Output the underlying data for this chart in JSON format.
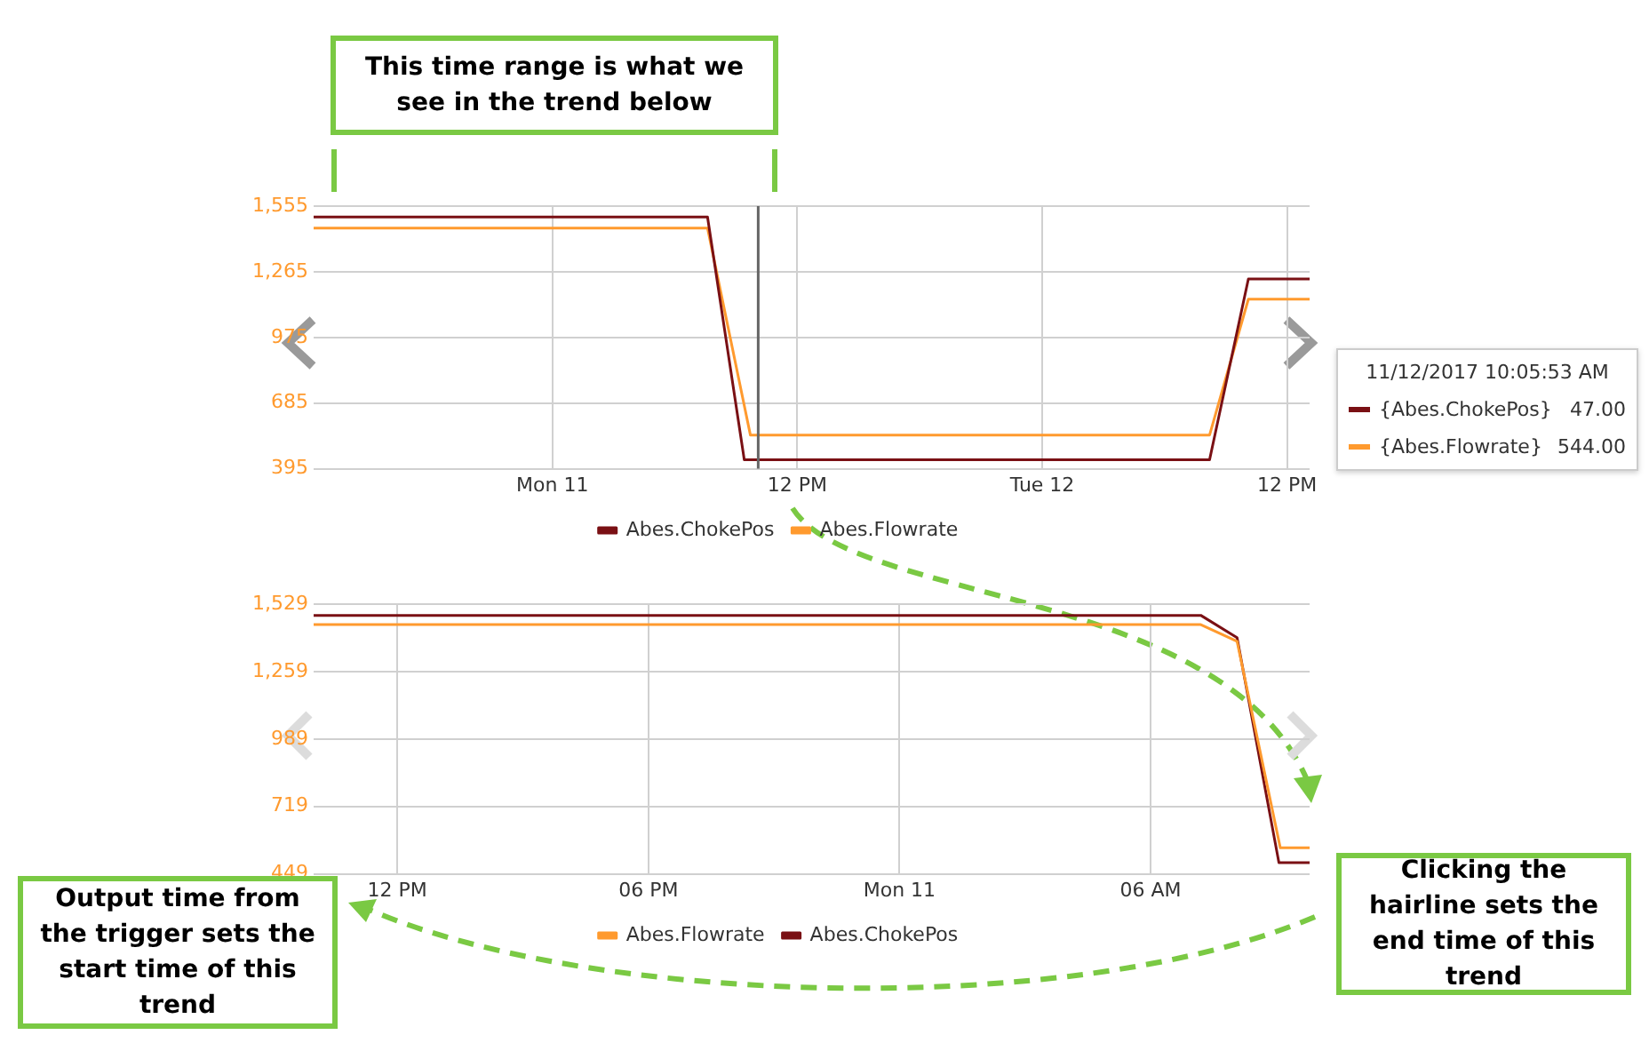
{
  "chart_data": [
    {
      "type": "line",
      "annotations": [
        "This time range is what we see in the trend below",
        "11/12/2017 10:05:53 AM",
        "{Abes.ChokePos}",
        "47.00",
        "{Abes.Flowrate}",
        "544.00"
      ],
      "series": [
        {
          "name": "Abes.ChokePos",
          "color": "#7a1014",
          "x": [
            "2017-12-10T12:18",
            "2017-12-11T07:36",
            "2017-12-11T09:24",
            "2017-12-12T08:12",
            "2017-12-12T10:06",
            "2017-12-12T13:06"
          ],
          "values": [
            1507,
            1507,
            435,
            435,
            1233,
            1233
          ]
        },
        {
          "name": "Abes.Flowrate",
          "color": "#ff9a2e",
          "x": [
            "2017-12-10T12:18",
            "2017-12-11T07:36",
            "2017-12-11T09:42",
            "2017-12-12T08:12",
            "2017-12-12T10:06",
            "2017-12-12T13:06"
          ],
          "values": [
            1458,
            1458,
            544,
            544,
            1144,
            1144
          ]
        }
      ],
      "xlim": [
        "2017-12-10T12:18",
        "2017-12-12T13:06"
      ],
      "xticks": [
        {
          "value": "2017-12-11",
          "label": "Mon 11"
        },
        {
          "value": "2017-12-11T12:00",
          "label": "12 PM"
        },
        {
          "value": "2017-12-12",
          "label": "Tue 12"
        },
        {
          "value": "2017-12-12T12:00",
          "label": "12 PM"
        }
      ],
      "ylim": [
        395,
        1555
      ],
      "yticks": [
        {
          "value": 395,
          "label": "395"
        },
        {
          "value": 685,
          "label": "685"
        },
        {
          "value": 975,
          "label": "975"
        },
        {
          "value": 1265,
          "label": "1,265"
        },
        {
          "value": 1555,
          "label": "1,555"
        }
      ],
      "ref_lines": [
        {
          "axis": "x",
          "value": "2017-12-11T10:05",
          "color": "#666666"
        }
      ],
      "grid": true,
      "legend": "bottom",
      "marker": "none",
      "line_style": "solid"
    },
    {
      "type": "line",
      "annotations": [
        "Output time from the trigger sets the start time of this trend",
        "Clicking the hairline sets the end time of this trend"
      ],
      "series": [
        {
          "name": "Abes.Flowrate",
          "color": "#ff9a2e",
          "x": [
            "2017-12-10T10:00",
            "2017-12-11T07:12",
            "2017-12-11T08:04",
            "2017-12-11T09:06",
            "2017-12-11T09:48"
          ],
          "values": [
            1447,
            1447,
            1380,
            553,
            553
          ]
        },
        {
          "name": "Abes.ChokePos",
          "color": "#7a1014",
          "x": [
            "2017-12-10T10:00",
            "2017-12-11T07:12",
            "2017-12-11T08:04",
            "2017-12-11T09:04",
            "2017-12-11T09:48"
          ],
          "values": [
            1484,
            1484,
            1395,
            494,
            494
          ]
        }
      ],
      "xlim": [
        "2017-12-10T10:00",
        "2017-12-11T09:48"
      ],
      "xticks": [
        {
          "value": "2017-12-10T12:00",
          "label": "12 PM"
        },
        {
          "value": "2017-12-10T18:00",
          "label": "06 PM"
        },
        {
          "value": "2017-12-11",
          "label": "Mon 11"
        },
        {
          "value": "2017-12-11T06:00",
          "label": "06 AM"
        }
      ],
      "ylim": [
        449,
        1529
      ],
      "yticks": [
        {
          "value": 449,
          "label": "449"
        },
        {
          "value": 719,
          "label": "719"
        },
        {
          "value": 989,
          "label": "989"
        },
        {
          "value": 1259,
          "label": "1,259"
        },
        {
          "value": 1529,
          "label": "1,529"
        }
      ],
      "grid": true,
      "legend": "bottom",
      "marker": "none",
      "line_style": "solid"
    }
  ]
}
